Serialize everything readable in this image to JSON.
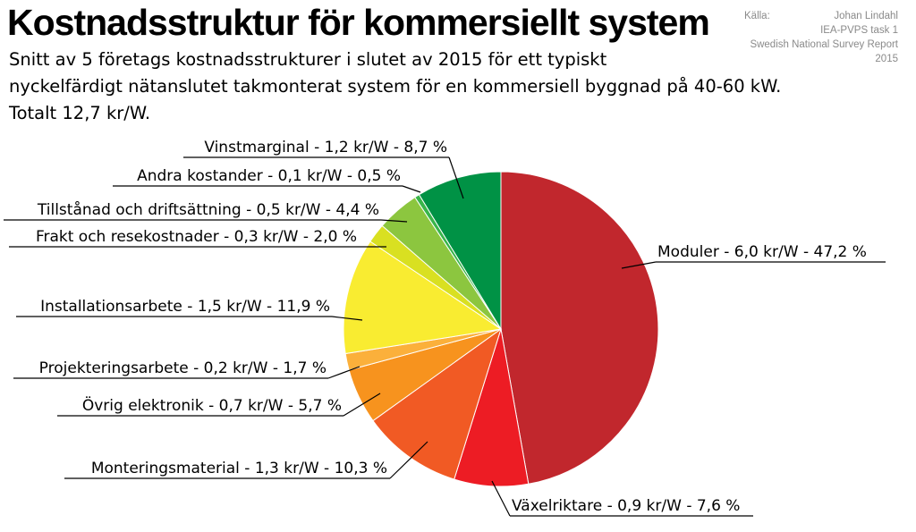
{
  "chart_data": {
    "type": "pie",
    "title": "Kostnadsstruktur för kommersiellt system",
    "subtitle_lines": [
      "Snitt av 5 företags kostnadsstrukturer i slutet av 2015 för ett typiskt",
      "nyckelfärdigt nätanslutet takmonterat system för en kommersiell byggnad på 40-60 kW.",
      "Totalt 12,7 kr/W."
    ],
    "source_label": "Källa:",
    "source_lines": [
      "Johan Lindahl",
      "IEA-PVPS task 1",
      "Swedish National Survey Report",
      "2015"
    ],
    "slices": [
      {
        "label": "Moduler - 6,0 kr/W - 47,2 %",
        "percent": 47.2,
        "value": 6.0,
        "color": "#c1272d"
      },
      {
        "label": "Växelriktare - 0,9 kr/W - 7,6 %",
        "percent": 7.6,
        "value": 0.9,
        "color": "#ed1c24"
      },
      {
        "label": "Monteringsmaterial - 1,3 kr/W - 10,3 %",
        "percent": 10.3,
        "value": 1.3,
        "color": "#f15a24"
      },
      {
        "label": "Övrig elektronik - 0,7 kr/W - 5,7 %",
        "percent": 5.7,
        "value": 0.7,
        "color": "#f7931e"
      },
      {
        "label": "Projekteringsarbete - 0,2 kr/W - 1,7 %",
        "percent": 1.7,
        "value": 0.2,
        "color": "#fbb03b"
      },
      {
        "label": "Installationsarbete - 1,5 kr/W - 11,9 %",
        "percent": 11.9,
        "value": 1.5,
        "color": "#f9ec31"
      },
      {
        "label": "Frakt och resekostnader - 0,3 kr/W - 2,0 %",
        "percent": 2.0,
        "value": 0.3,
        "color": "#d9e021"
      },
      {
        "label": "Tillstånad och driftsättning - 0,5 kr/W - 4,4 %",
        "percent": 4.4,
        "value": 0.5,
        "color": "#8cc63f"
      },
      {
        "label": "Andra kostander - 0,1 kr/W - 0,5 %",
        "percent": 0.5,
        "value": 0.1,
        "color": "#39b54a"
      },
      {
        "label": "Vinstmarginal - 1,2 kr/W - 8,7 %",
        "percent": 8.7,
        "value": 1.2,
        "color": "#009245"
      }
    ]
  }
}
